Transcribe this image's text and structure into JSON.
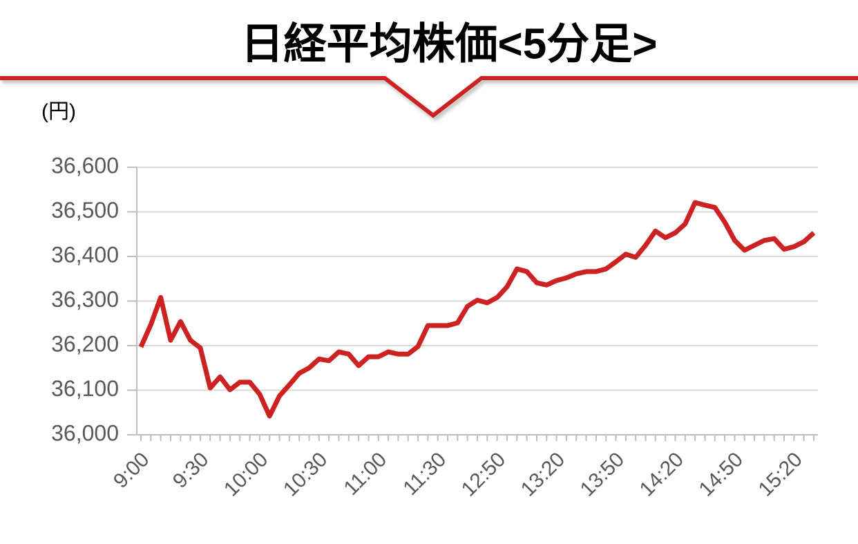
{
  "chart_data": {
    "type": "line",
    "title": "日経平均株価<5分足>",
    "y_label": "(円)",
    "categories": [
      "9:00",
      null,
      null,
      null,
      null,
      null,
      "9:30",
      null,
      null,
      null,
      null,
      null,
      "10:00",
      null,
      null,
      null,
      null,
      null,
      "10:30",
      null,
      null,
      null,
      null,
      null,
      "11:00",
      null,
      null,
      null,
      null,
      null,
      "11:30",
      null,
      null,
      null,
      null,
      null,
      "12:50",
      null,
      null,
      null,
      null,
      null,
      "13:20",
      null,
      null,
      null,
      null,
      null,
      "13:50",
      null,
      null,
      null,
      null,
      null,
      "14:20",
      null,
      null,
      null,
      null,
      null,
      "14:50",
      null,
      null,
      null,
      null,
      null,
      "15:20",
      null,
      null
    ],
    "series": [
      {
        "name": "日経平均株価",
        "color": "#cc2222",
        "values": [
          36197,
          36247,
          36308,
          36212,
          36254,
          36212,
          36195,
          36105,
          36130,
          36101,
          36118,
          36118,
          36091,
          36042,
          36087,
          36112,
          36138,
          36150,
          36170,
          36166,
          36186,
          36181,
          36155,
          36175,
          36175,
          36186,
          36181,
          36181,
          36198,
          36245,
          36245,
          36245,
          36251,
          36288,
          36302,
          36296,
          36308,
          36332,
          36372,
          36366,
          36341,
          36336,
          36346,
          36352,
          36361,
          36366,
          36366,
          36372,
          36388,
          36405,
          36398,
          36425,
          36457,
          36442,
          36453,
          36473,
          36521,
          36515,
          36510,
          36477,
          36436,
          36414,
          36425,
          36436,
          36440,
          36416,
          36422,
          36433,
          36453
        ]
      }
    ],
    "ylim": [
      36000,
      36600
    ],
    "yticks": [
      {
        "value": 36000,
        "label": "36,000"
      },
      {
        "value": 36100,
        "label": "36,100"
      },
      {
        "value": 36200,
        "label": "36,200"
      },
      {
        "value": 36300,
        "label": "36,300"
      },
      {
        "value": 36400,
        "label": "36,400"
      },
      {
        "value": 36500,
        "label": "36,500"
      },
      {
        "value": 36600,
        "label": "36,600"
      }
    ],
    "grid": true
  }
}
